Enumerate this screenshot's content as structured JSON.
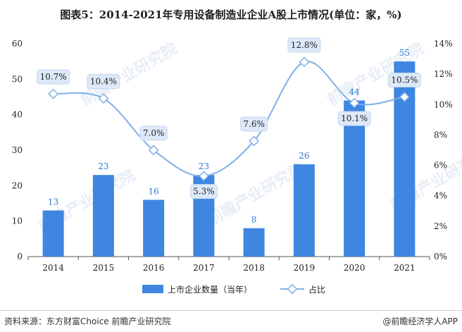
{
  "title": "图表5：2014-2021年专用设备制造业企业A股上市情况(单位：家，%)",
  "source_left": "资料来源：东方财富Choice 前瞻产业研究院",
  "source_right": "@前瞻经济学人APP",
  "watermark": "前瞻产业研究院",
  "chart_data": {
    "type": "bar",
    "categories": [
      "2014",
      "2015",
      "2016",
      "2017",
      "2018",
      "2019",
      "2020",
      "2021"
    ],
    "series": [
      {
        "name": "上市企业数量（当年）",
        "type": "bar",
        "axis": "left",
        "values": [
          13,
          23,
          16,
          23,
          8,
          26,
          44,
          55
        ],
        "labels": [
          "13",
          "23",
          "16",
          "23",
          "8",
          "26",
          "44",
          "55"
        ],
        "color": "#3f86e0"
      },
      {
        "name": "占比",
        "type": "line",
        "axis": "right",
        "values": [
          10.7,
          10.4,
          7.0,
          5.3,
          7.6,
          12.8,
          10.1,
          10.5
        ],
        "labels": [
          "10.7%",
          "10.4%",
          "7.0%",
          "5.3%",
          "7.6%",
          "12.8%",
          "10.1%",
          "10.5%"
        ],
        "color": "#7fb0e8"
      }
    ],
    "y_left": {
      "min": 0,
      "max": 60,
      "ticks": [
        "0",
        "10",
        "20",
        "30",
        "40",
        "50",
        "60"
      ]
    },
    "y_right": {
      "min": 0,
      "max": 14,
      "ticks": [
        "0%",
        "2%",
        "4%",
        "6%",
        "8%",
        "10%",
        "12%",
        "14%"
      ]
    },
    "legend_position": "bottom"
  }
}
